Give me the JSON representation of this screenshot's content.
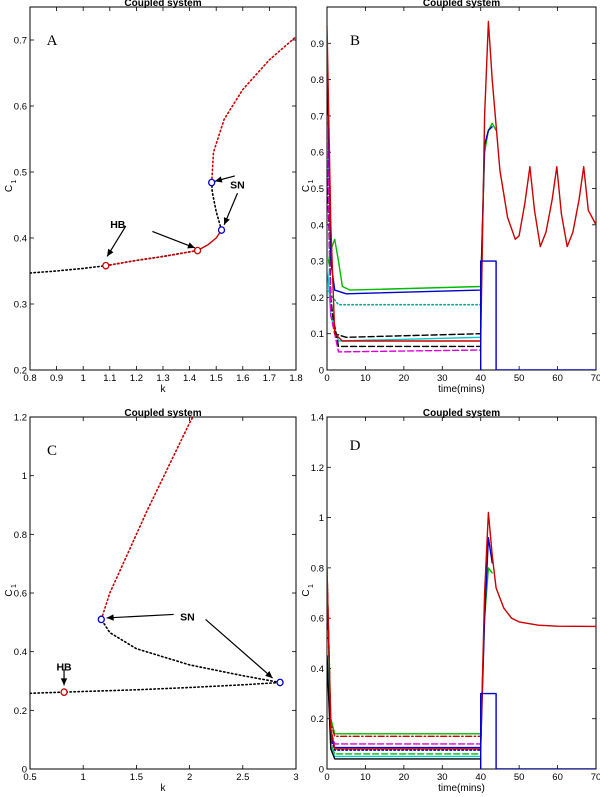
{
  "chart_data": [
    {
      "type": "line",
      "panel": "A",
      "title": "Coupled system",
      "xlabel": "k",
      "ylabel": "C",
      "ylabel_sub": "1",
      "xlim": [
        0.8,
        1.8
      ],
      "ylim": [
        0.2,
        0.75
      ],
      "xticks": [
        0.8,
        0.9,
        1,
        1.1,
        1.2,
        1.3,
        1.4,
        1.5,
        1.6,
        1.7,
        1.8
      ],
      "yticks": [
        0.2,
        0.3,
        0.4,
        0.5,
        0.6,
        0.7
      ],
      "series": [
        {
          "color": "#000000",
          "style": "dotted",
          "points": [
            [
              0.8,
              0.347
            ],
            [
              0.9,
              0.35
            ],
            [
              1.0,
              0.354
            ],
            [
              1.085,
              0.358
            ],
            [
              1.2,
              0.366
            ],
            [
              1.3,
              0.372
            ],
            [
              1.43,
              0.381
            ]
          ]
        },
        {
          "color": "#cc0000",
          "style": "dotted",
          "points": [
            [
              1.085,
              0.358
            ],
            [
              1.2,
              0.366
            ],
            [
              1.3,
              0.372
            ],
            [
              1.43,
              0.381
            ]
          ]
        },
        {
          "color": "#cc0000",
          "style": "solid",
          "points": [
            [
              1.43,
              0.381
            ],
            [
              1.47,
              0.39
            ],
            [
              1.5,
              0.4
            ],
            [
              1.52,
              0.412
            ]
          ]
        },
        {
          "color": "#000000",
          "style": "dotted",
          "points": [
            [
              1.52,
              0.412
            ],
            [
              1.5,
              0.44
            ],
            [
              1.485,
              0.47
            ],
            [
              1.483,
              0.484
            ]
          ]
        },
        {
          "color": "#cc0000",
          "style": "dotted",
          "points": [
            [
              1.483,
              0.484
            ],
            [
              1.49,
              0.53
            ],
            [
              1.53,
              0.58
            ],
            [
              1.6,
              0.625
            ],
            [
              1.7,
              0.67
            ],
            [
              1.8,
              0.705
            ]
          ]
        }
      ],
      "markers": [
        {
          "x": 1.085,
          "y": 0.358,
          "color": "#cc0000"
        },
        {
          "x": 1.43,
          "y": 0.381,
          "color": "#cc0000"
        },
        {
          "x": 1.483,
          "y": 0.484,
          "color": "#0000cc"
        },
        {
          "x": 1.52,
          "y": 0.412,
          "color": "#0000cc"
        }
      ],
      "annotations": [
        {
          "text": "HB",
          "x": 1.13,
          "y": 0.421,
          "arrows": [
            [
              [
                1.16,
                0.418
              ],
              [
                1.09,
                0.372
              ]
            ],
            [
              [
                1.26,
                0.41
              ],
              [
                1.42,
                0.385
              ]
            ]
          ]
        },
        {
          "text": "SN",
          "x": 1.58,
          "y": 0.481,
          "arrows": [
            [
              [
                1.57,
                0.494
              ],
              [
                1.495,
                0.486
              ]
            ],
            [
              [
                1.58,
                0.468
              ],
              [
                1.53,
                0.42
              ]
            ]
          ]
        }
      ],
      "panel_label": "A"
    },
    {
      "type": "line",
      "panel": "B",
      "title": "Coupled system",
      "xlabel": "time(mins)",
      "ylabel": "C",
      "ylabel_sub": "1",
      "xlim": [
        0,
        70
      ],
      "ylim": [
        0,
        1.0
      ],
      "xticks": [
        0,
        10,
        20,
        30,
        40,
        50,
        60,
        70
      ],
      "yticks": [
        0,
        0.1,
        0.2,
        0.3,
        0.4,
        0.5,
        0.6,
        0.7,
        0.8,
        0.9
      ],
      "series": [
        {
          "color": "#00bb00",
          "style": "solid",
          "points": [
            [
              0,
              0.28
            ],
            [
              1,
              0.33
            ],
            [
              2,
              0.36
            ],
            [
              3,
              0.3
            ],
            [
              4,
              0.23
            ],
            [
              6,
              0.22
            ],
            [
              40,
              0.23
            ],
            [
              41,
              0.6
            ],
            [
              42,
              0.66
            ],
            [
              43,
              0.68
            ],
            [
              44,
              0.66
            ]
          ]
        },
        {
          "color": "#0000cc",
          "style": "solid",
          "points": [
            [
              0,
              0.9
            ],
            [
              1,
              0.3
            ],
            [
              2,
              0.22
            ],
            [
              5,
              0.21
            ],
            [
              40,
              0.22
            ],
            [
              41,
              0.62
            ],
            [
              42,
              0.66
            ],
            [
              43,
              0.67
            ]
          ]
        },
        {
          "color": "#00aa88",
          "style": "dotted",
          "points": [
            [
              0,
              0.22
            ],
            [
              3,
              0.18
            ],
            [
              40,
              0.18
            ]
          ]
        },
        {
          "color": "#000000",
          "style": "dashed",
          "points": [
            [
              0,
              0.7
            ],
            [
              1,
              0.2
            ],
            [
              2,
              0.1
            ],
            [
              5,
              0.09
            ],
            [
              40,
              0.1
            ]
          ]
        },
        {
          "color": "#00cccc",
          "style": "solid",
          "points": [
            [
              0,
              0.3
            ],
            [
              1,
              0.15
            ],
            [
              3,
              0.08
            ],
            [
              40,
              0.09
            ]
          ]
        },
        {
          "color": "#000000",
          "style": "dashed",
          "points": [
            [
              0,
              0.6
            ],
            [
              1,
              0.18
            ],
            [
              3,
              0.065
            ],
            [
              40,
              0.065
            ]
          ]
        },
        {
          "color": "#dd00dd",
          "style": "dashed",
          "points": [
            [
              0,
              0.7
            ],
            [
              1,
              0.15
            ],
            [
              3,
              0.05
            ],
            [
              40,
              0.055
            ]
          ]
        },
        {
          "color": "#cc0000",
          "style": "solid",
          "points": [
            [
              0,
              0.95
            ],
            [
              1,
              0.4
            ],
            [
              2,
              0.1
            ],
            [
              4,
              0.08
            ],
            [
              40,
              0.08
            ],
            [
              41,
              0.7
            ],
            [
              42,
              0.96
            ],
            [
              43,
              0.8
            ],
            [
              45,
              0.55
            ],
            [
              47,
              0.42
            ],
            [
              49,
              0.36
            ],
            [
              50,
              0.37
            ],
            [
              51.5,
              0.46
            ],
            [
              52.8,
              0.56
            ],
            [
              54,
              0.44
            ],
            [
              55.5,
              0.34
            ],
            [
              57,
              0.38
            ],
            [
              58.6,
              0.47
            ],
            [
              59.8,
              0.56
            ],
            [
              61,
              0.43
            ],
            [
              62.5,
              0.34
            ],
            [
              64,
              0.38
            ],
            [
              65.6,
              0.47
            ],
            [
              66.8,
              0.56
            ],
            [
              68,
              0.44
            ],
            [
              70,
              0.4
            ]
          ]
        },
        {
          "color": "#0000cc",
          "style": "solid",
          "points": [
            [
              40,
              0
            ],
            [
              40,
              0.3
            ],
            [
              44,
              0.3
            ],
            [
              44,
              0
            ],
            [
              70,
              0
            ]
          ]
        }
      ],
      "panel_label": "B"
    },
    {
      "type": "line",
      "panel": "C",
      "title": "Coupled system",
      "xlabel": "k",
      "ylabel": "C",
      "ylabel_sub": "1",
      "xlim": [
        0.5,
        3.0
      ],
      "ylim": [
        0,
        1.2
      ],
      "xticks": [
        0.5,
        1,
        1.5,
        2,
        2.5,
        3
      ],
      "yticks": [
        0,
        0.2,
        0.4,
        0.6,
        0.8,
        1,
        1.2
      ],
      "series": [
        {
          "color": "#000000",
          "style": "dotted",
          "points": [
            [
              0.5,
              0.258
            ],
            [
              0.82,
              0.262
            ],
            [
              1.5,
              0.27
            ],
            [
              2.0,
              0.278
            ],
            [
              2.5,
              0.287
            ],
            [
              2.85,
              0.295
            ]
          ]
        },
        {
          "color": "#000000",
          "style": "dotted",
          "points": [
            [
              2.85,
              0.295
            ],
            [
              2.5,
              0.318
            ],
            [
              2.0,
              0.355
            ],
            [
              1.5,
              0.41
            ],
            [
              1.25,
              0.465
            ],
            [
              1.17,
              0.51
            ]
          ]
        },
        {
          "color": "#cc0000",
          "style": "dotted",
          "points": [
            [
              1.17,
              0.51
            ],
            [
              1.25,
              0.6
            ],
            [
              1.4,
              0.72
            ],
            [
              1.6,
              0.88
            ],
            [
              1.8,
              1.03
            ],
            [
              2.0,
              1.18
            ],
            [
              2.03,
              1.2
            ]
          ]
        }
      ],
      "markers": [
        {
          "x": 0.82,
          "y": 0.262,
          "color": "#cc0000"
        },
        {
          "x": 1.17,
          "y": 0.51,
          "color": "#0000cc"
        },
        {
          "x": 2.85,
          "y": 0.295,
          "color": "#0000cc"
        }
      ],
      "annotations": [
        {
          "text": "HB",
          "x": 0.82,
          "y": 0.35,
          "arrows": [
            [
              [
                0.82,
                0.34
              ],
              [
                0.82,
                0.285
              ]
            ]
          ]
        },
        {
          "text": "SN",
          "x": 1.98,
          "y": 0.52,
          "arrows": [
            [
              [
                1.85,
                0.527
              ],
              [
                1.22,
                0.515
              ]
            ],
            [
              [
                2.15,
                0.51
              ],
              [
                2.78,
                0.31
              ]
            ]
          ]
        }
      ],
      "panel_label": "C"
    },
    {
      "type": "line",
      "panel": "D",
      "title": "Coupled system",
      "xlabel": "time(mins)",
      "ylabel": "C",
      "ylabel_sub": "1",
      "xlim": [
        0,
        70
      ],
      "ylim": [
        0,
        1.4
      ],
      "xticks": [
        0,
        10,
        20,
        30,
        40,
        50,
        60,
        70
      ],
      "yticks": [
        0,
        0.2,
        0.4,
        0.6,
        0.8,
        1,
        1.2,
        1.4
      ],
      "series": [
        {
          "color": "#00bb00",
          "style": "solid",
          "points": [
            [
              0,
              0.78
            ],
            [
              1,
              0.2
            ],
            [
              2,
              0.14
            ],
            [
              40,
              0.14
            ],
            [
              41,
              0.6
            ],
            [
              42,
              0.8
            ],
            [
              43,
              0.78
            ]
          ]
        },
        {
          "color": "#cc0000",
          "style": "dashdot",
          "points": [
            [
              0,
              0.8
            ],
            [
              1,
              0.18
            ],
            [
              2,
              0.13
            ],
            [
              40,
              0.13
            ]
          ]
        },
        {
          "color": "#dd00dd",
          "style": "dashed",
          "points": [
            [
              0,
              0.75
            ],
            [
              1,
              0.15
            ],
            [
              2,
              0.1
            ],
            [
              40,
              0.1
            ]
          ]
        },
        {
          "color": "#0000cc",
          "style": "solid",
          "points": [
            [
              0,
              0.7
            ],
            [
              1,
              0.13
            ],
            [
              2,
              0.085
            ],
            [
              40,
              0.085
            ],
            [
              41,
              0.6
            ],
            [
              42,
              0.92
            ],
            [
              43,
              0.82
            ]
          ]
        },
        {
          "color": "#0000cc",
          "style": "dotted",
          "points": [
            [
              0,
              0.6
            ],
            [
              1,
              0.12
            ],
            [
              2,
              0.075
            ],
            [
              40,
              0.075
            ]
          ]
        },
        {
          "color": "#00bb00",
          "style": "dashed",
          "points": [
            [
              0,
              0.55
            ],
            [
              1,
              0.1
            ],
            [
              2,
              0.06
            ],
            [
              40,
              0.06
            ]
          ]
        },
        {
          "color": "#00cccc",
          "style": "solid",
          "points": [
            [
              0,
              0.5
            ],
            [
              1,
              0.09
            ],
            [
              2,
              0.05
            ],
            [
              40,
              0.05
            ]
          ]
        },
        {
          "color": "#000000",
          "style": "solid",
          "points": [
            [
              0,
              0.45
            ],
            [
              1,
              0.08
            ],
            [
              2,
              0.04
            ],
            [
              40,
              0.04
            ]
          ]
        },
        {
          "color": "#cc0000",
          "style": "solid",
          "points": [
            [
              0,
              0.8
            ],
            [
              1,
              0.16
            ],
            [
              2,
              0.08
            ],
            [
              40,
              0.08
            ],
            [
              41,
              0.7
            ],
            [
              42,
              1.02
            ],
            [
              43,
              0.85
            ],
            [
              44,
              0.72
            ],
            [
              46,
              0.64
            ],
            [
              48,
              0.6
            ],
            [
              50,
              0.585
            ],
            [
              55,
              0.572
            ],
            [
              60,
              0.568
            ],
            [
              70,
              0.567
            ]
          ]
        },
        {
          "color": "#0000cc",
          "style": "solid",
          "points": [
            [
              40,
              0
            ],
            [
              40,
              0.3
            ],
            [
              44,
              0.3
            ],
            [
              44,
              0
            ],
            [
              70,
              0
            ]
          ]
        }
      ],
      "panel_label": "D"
    }
  ]
}
